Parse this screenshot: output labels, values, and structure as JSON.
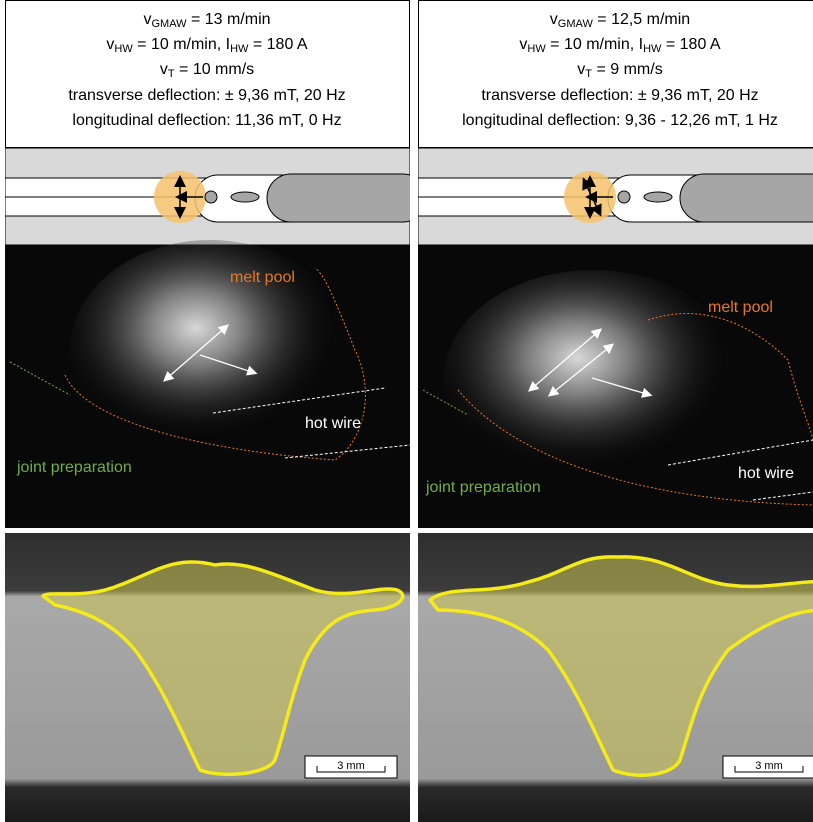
{
  "panels": [
    {
      "parameters": [
        [
          "v",
          "GMAW",
          " = 13 m/min"
        ],
        [
          "v",
          "HW",
          " = 10 m/min, I",
          "HW",
          " = 180 A"
        ],
        [
          "v",
          "T",
          " = 10 mm/s"
        ],
        [
          "transverse deflection: ± 9,36 mT, 20 Hz"
        ],
        [
          "longitudinal deflection: 11,36 mT, 0 Hz"
        ]
      ],
      "image_labels": {
        "melt_pool": "melt pool",
        "hot_wire": "hot wire",
        "joint_preparation": "joint preparation"
      },
      "scale_bar": "3 mm"
    },
    {
      "parameters": [
        [
          "v",
          "GMAW",
          " = 12,5 m/min"
        ],
        [
          "v",
          "HW",
          " = 10 m/min, I",
          "HW",
          " = 180 A"
        ],
        [
          "v",
          "T",
          " = 9 mm/s"
        ],
        [
          "transverse deflection: ± 9,36 mT, 20 Hz"
        ],
        [
          "longitudinal deflection: 9,36 - 12,26 mT, 1 Hz"
        ]
      ],
      "image_labels": {
        "melt_pool": "melt pool",
        "hot_wire": "hot wire",
        "joint_preparation": "joint preparation"
      },
      "scale_bar": "3 mm"
    }
  ]
}
